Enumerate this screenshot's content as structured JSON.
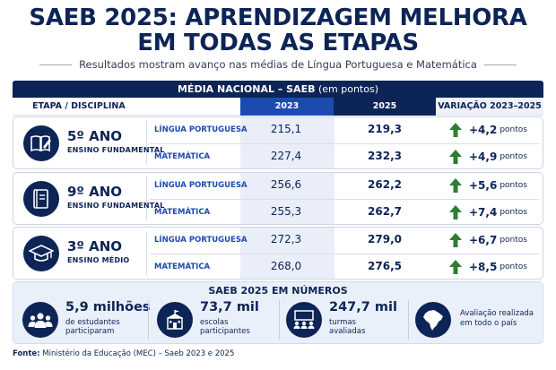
{
  "header": {
    "title_line1": "SAEB 2025: APRENDIZAGEM MELHORA",
    "title_line2": "EM TODAS AS ETAPAS",
    "subtitle": "Resultados mostram avanço nas médias de Língua Portuguesa e Matemática"
  },
  "table": {
    "bar_bold": "MÉDIA NACIONAL – SAEB",
    "bar_normal": " (em pontos)",
    "col_etapa": "ETAPA / DISCIPLINA",
    "col_2023": "2023",
    "col_2025": "2025",
    "col_var": "VARIAÇÃO 2023–2025",
    "unit": "pontos",
    "rows": [
      {
        "stage": "5º ANO",
        "level": "ENSINO FUNDAMENTAL",
        "icon": "book-pencil-icon",
        "lp": {
          "subject": "LÍNGUA PORTUGUESA",
          "v2023": "215,1",
          "v2025": "219,3",
          "delta": "+4,2"
        },
        "mat": {
          "subject": "MATEMÁTICA",
          "v2023": "227,4",
          "v2025": "232,3",
          "delta": "+4,9"
        }
      },
      {
        "stage": "9º ANO",
        "level": "ENSINO FUNDAMENTAL",
        "icon": "notebook-icon",
        "lp": {
          "subject": "LÍNGUA PORTUGUESA",
          "v2023": "256,6",
          "v2025": "262,2",
          "delta": "+5,6"
        },
        "mat": {
          "subject": "MATEMÁTICA",
          "v2023": "255,3",
          "v2025": "262,7",
          "delta": "+7,4"
        }
      },
      {
        "stage": "3º ANO",
        "level": "ENSINO MÉDIO",
        "icon": "graduation-cap-icon",
        "lp": {
          "subject": "LÍNGUA PORTUGUESA",
          "v2023": "272,3",
          "v2025": "279,0",
          "delta": "+6,7"
        },
        "mat": {
          "subject": "MATEMÁTICA",
          "v2023": "268,0",
          "v2025": "276,5",
          "delta": "+8,5"
        }
      }
    ]
  },
  "numbers": {
    "title": "SAEB 2025 EM NÚMEROS",
    "students": {
      "big": "5,9 milhões",
      "line1": "de estudantes",
      "line2": "participaram"
    },
    "schools": {
      "big": "73,7 mil",
      "line1": "escolas",
      "line2": "participantes"
    },
    "classes": {
      "big": "247,7 mil",
      "line1": "turmas",
      "line2": "avaliadas"
    },
    "country": {
      "line1": "Avaliação realizada",
      "line2": "em todo o país"
    }
  },
  "source": {
    "label": "Fonte:",
    "text": " Ministério da Educação (MEC) – Saeb 2023 e 2025"
  },
  "colors": {
    "navy": "#0d2456",
    "blue_2023": "#1c4bb0",
    "green_arrow": "#2e7d32"
  }
}
